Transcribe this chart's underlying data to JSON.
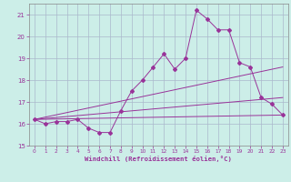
{
  "xlabel": "Windchill (Refroidissement éolien,°C)",
  "background_color": "#cceee8",
  "grid_color": "#aab8cc",
  "line_color": "#993399",
  "ylim": [
    15,
    21.5
  ],
  "xlim": [
    -0.5,
    23.5
  ],
  "yticks": [
    15,
    16,
    17,
    18,
    19,
    20,
    21
  ],
  "xticks": [
    0,
    1,
    2,
    3,
    4,
    5,
    6,
    7,
    8,
    9,
    10,
    11,
    12,
    13,
    14,
    15,
    16,
    17,
    18,
    19,
    20,
    21,
    22,
    23
  ],
  "series1_x": [
    0,
    1,
    2,
    3,
    4,
    5,
    6,
    7,
    8,
    9,
    10,
    11,
    12,
    13,
    14,
    15,
    16,
    17,
    18,
    19,
    20,
    21,
    22,
    23
  ],
  "series1_y": [
    16.2,
    16.0,
    16.1,
    16.1,
    16.2,
    15.8,
    15.6,
    15.6,
    16.6,
    17.5,
    18.0,
    18.6,
    19.2,
    18.5,
    19.0,
    21.2,
    20.8,
    20.3,
    20.3,
    18.8,
    18.6,
    17.2,
    16.9,
    16.4
  ],
  "series2_x": [
    0,
    23
  ],
  "series2_y": [
    16.2,
    16.4
  ],
  "series3_x": [
    0,
    23
  ],
  "series3_y": [
    16.2,
    18.6
  ],
  "series4_x": [
    0,
    23
  ],
  "series4_y": [
    16.2,
    17.2
  ]
}
